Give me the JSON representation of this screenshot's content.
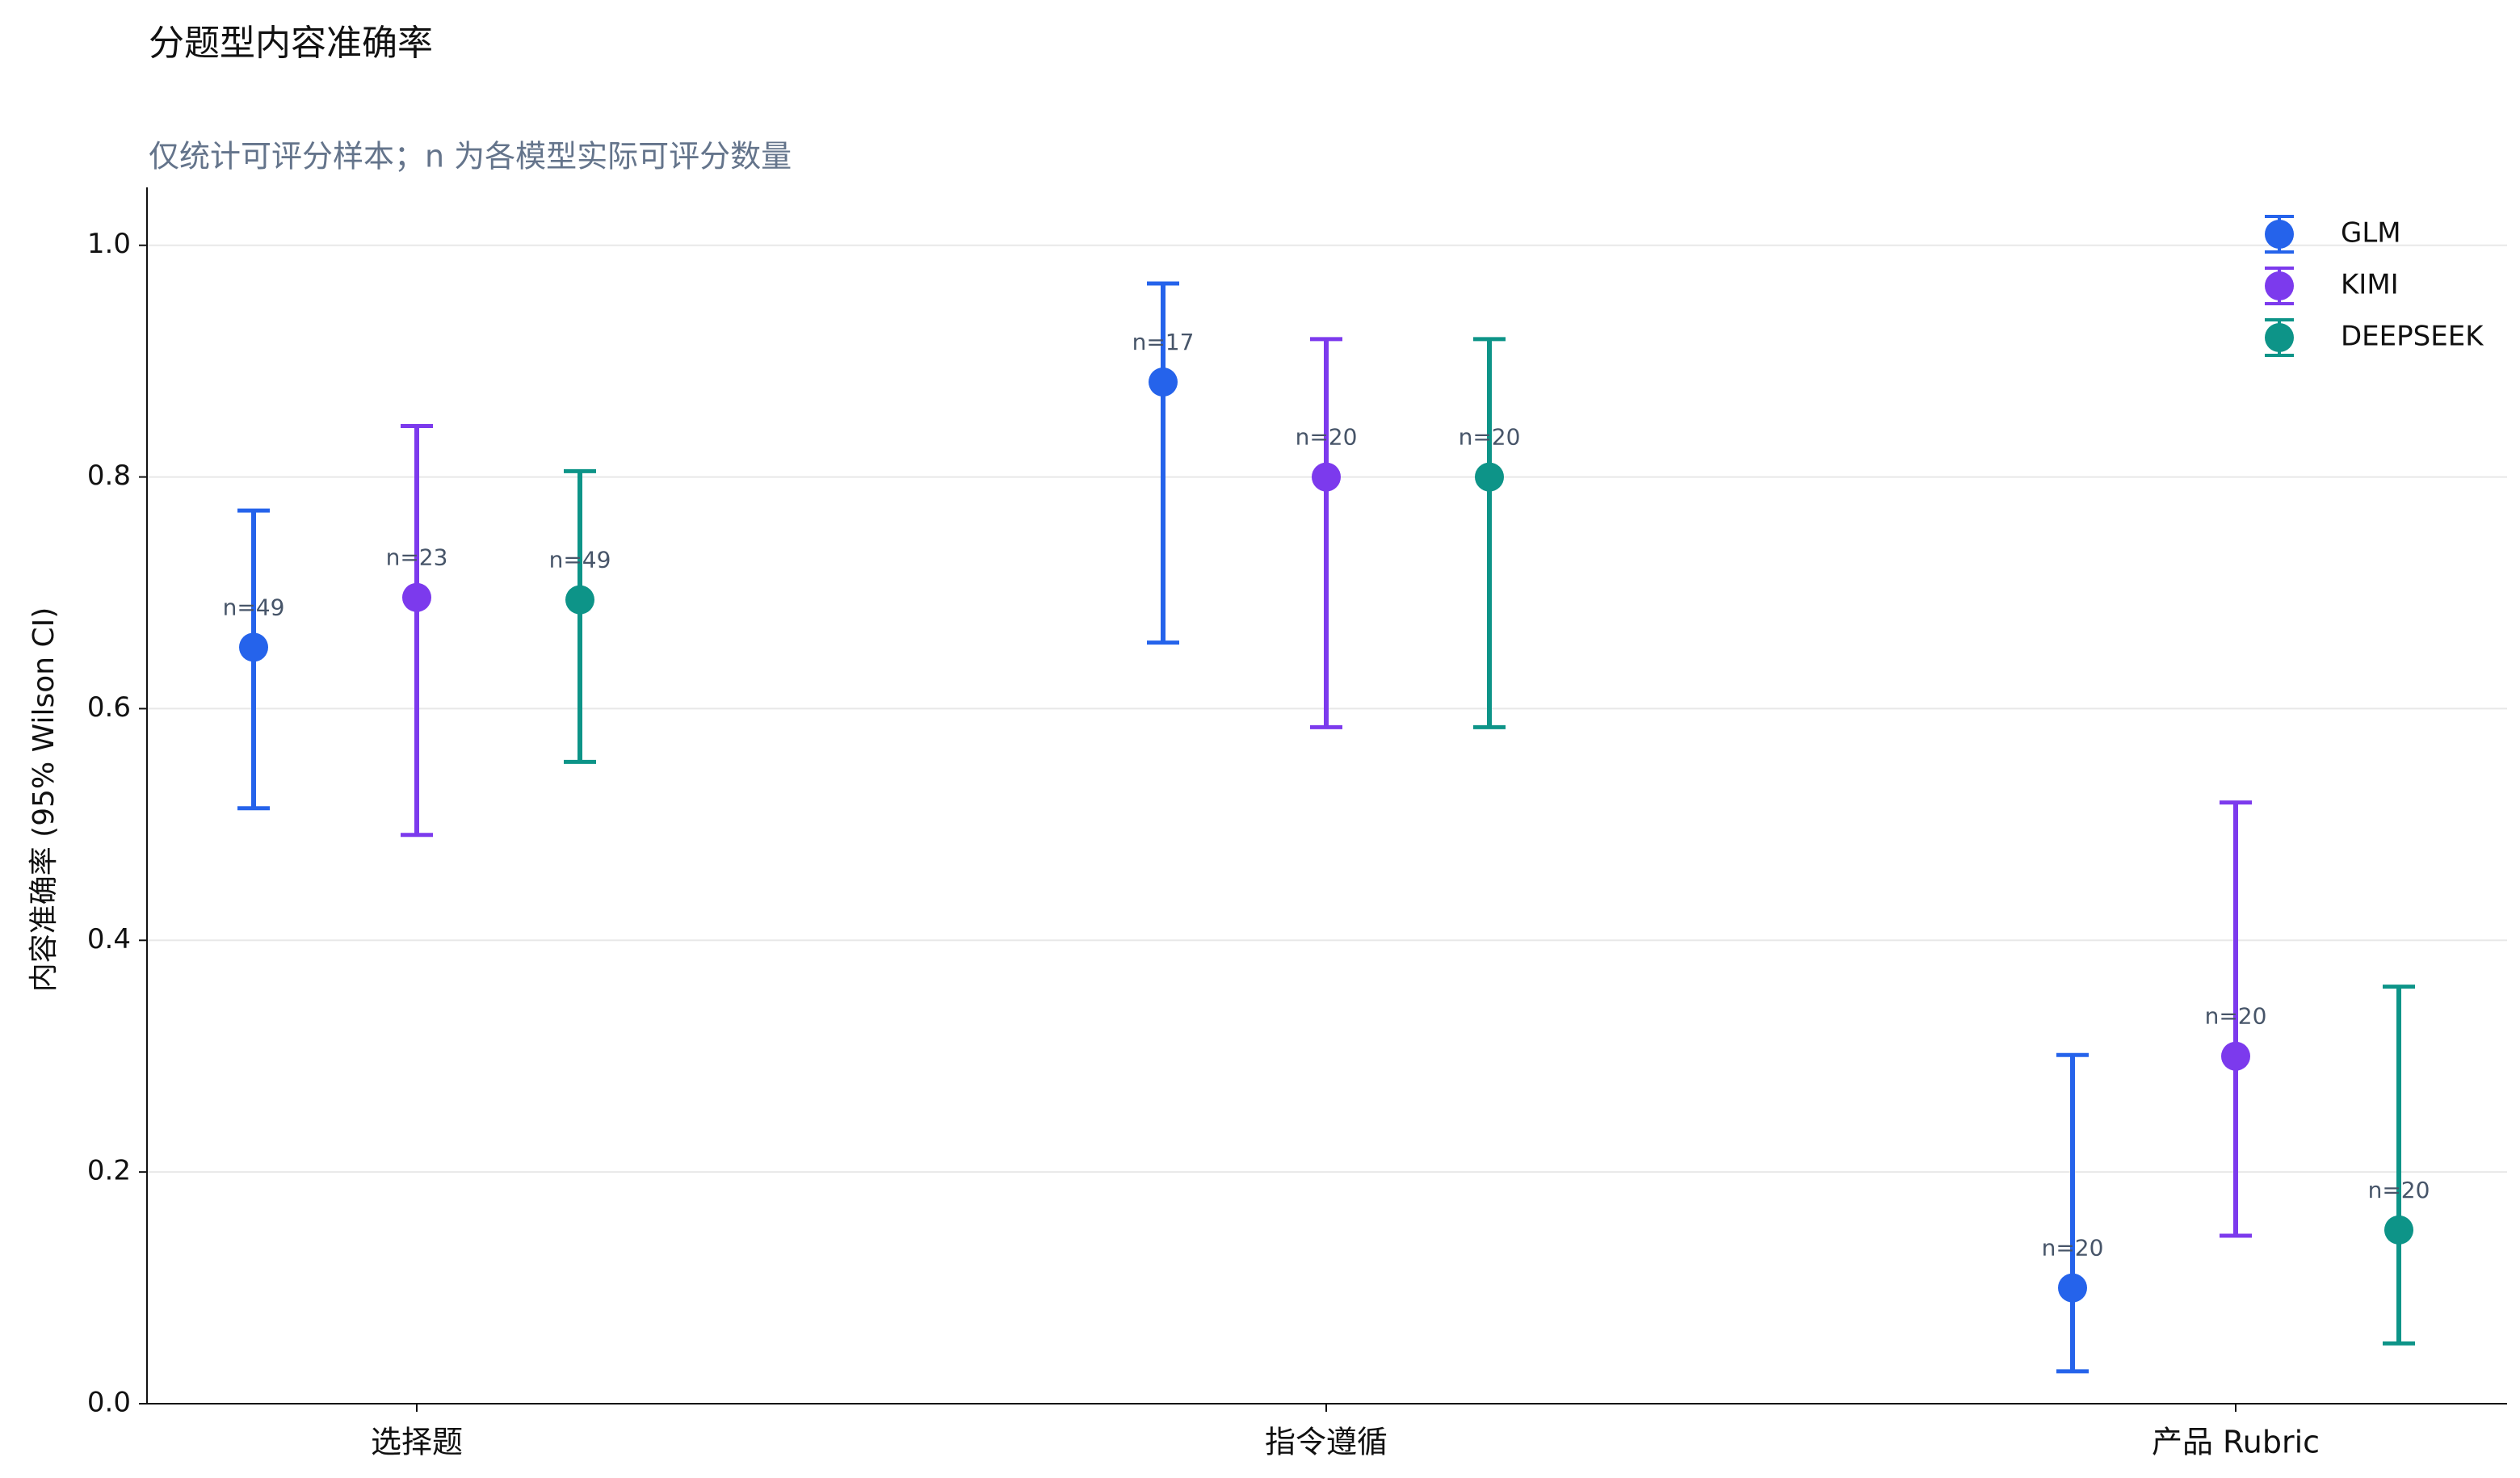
{
  "chart_data": {
    "type": "errorbar",
    "title": "分题型内容准确率",
    "subtitle": "仅统计可评分样本；n 为各模型实际可评分数量",
    "y_label": "内容准确率 (95% Wilson CI)",
    "categories": [
      "选择题",
      "指令遵循",
      "产品 Rubric"
    ],
    "ylim": [
      0,
      1.05
    ],
    "yticks": [
      {
        "value": 0,
        "label": "0.0"
      },
      0.2,
      0.4,
      0.6,
      0.8,
      {
        "value": 1,
        "label": "1.0"
      }
    ],
    "grid": true,
    "legend": "upper right",
    "series": [
      {
        "name": "GLM",
        "color": "#2563eb",
        "values": [
          0.653,
          0.882,
          0.1
        ],
        "lower": [
          0.514,
          0.657,
          0.028
        ],
        "upper": [
          0.771,
          0.967,
          0.301
        ],
        "labels": [
          "n=49",
          "n=17",
          "n=20"
        ]
      },
      {
        "name": "KIMI",
        "color": "#7c3aed",
        "values": [
          0.696,
          0.8,
          0.3
        ],
        "lower": [
          0.491,
          0.584,
          0.145
        ],
        "upper": [
          0.844,
          0.919,
          0.519
        ],
        "labels": [
          "n=23",
          "n=20",
          "n=20"
        ]
      },
      {
        "name": "DEEPSEEK",
        "color": "#0d9488",
        "values": [
          0.694,
          0.8,
          0.15
        ],
        "lower": [
          0.554,
          0.584,
          0.052
        ],
        "upper": [
          0.805,
          0.919,
          0.36
        ],
        "labels": [
          "n=49",
          "n=20",
          "n=20"
        ]
      }
    ]
  }
}
